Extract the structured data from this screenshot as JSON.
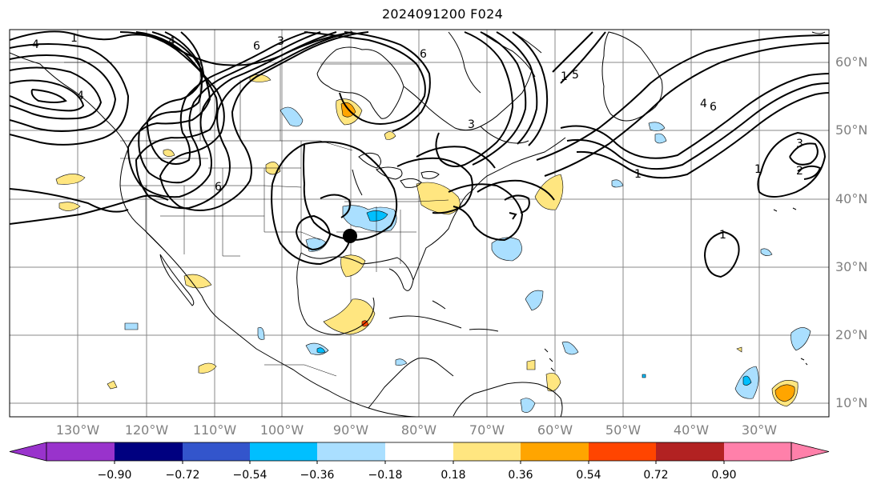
{
  "title": "2024091200 F024",
  "map": {
    "lat_labels": [
      "60°N",
      "50°N",
      "40°N",
      "30°N",
      "20°N",
      "10°N"
    ],
    "lon_labels": [
      "130°W",
      "120°W",
      "110°W",
      "100°W",
      "90°W",
      "80°W",
      "70°W",
      "60°W",
      "50°W",
      "40°W",
      "30°W"
    ],
    "contour_labels": [
      "1",
      "2",
      "3",
      "4",
      "5",
      "6"
    ],
    "colors": {
      "contour": "#000000",
      "coast": "#000000",
      "grid": "#888888",
      "land_fill": "#ffffff"
    }
  },
  "colorbar": {
    "ticks": [
      "−0.90",
      "−0.72",
      "−0.54",
      "−0.36",
      "−0.18",
      "0.18",
      "0.36",
      "0.54",
      "0.72",
      "0.90"
    ],
    "colors": [
      "#9933cc",
      "#000080",
      "#3355cc",
      "#00bfff",
      "#aadfff",
      "#ffffff",
      "#ffe680",
      "#ffa500",
      "#ff4500",
      "#b22222",
      "#ff80aa"
    ]
  }
}
